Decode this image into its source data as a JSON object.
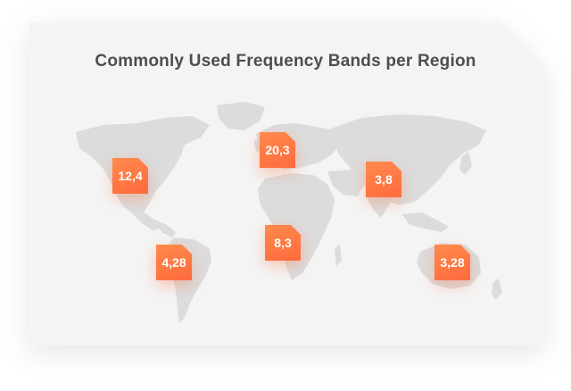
{
  "title": "Commonly Used Frequency Bands per Region",
  "badges": [
    {
      "region": "north-america",
      "label": "12,4"
    },
    {
      "region": "europe",
      "label": "20,3"
    },
    {
      "region": "asia",
      "label": "3,8"
    },
    {
      "region": "south-america",
      "label": "4,28"
    },
    {
      "region": "africa",
      "label": "8,3"
    },
    {
      "region": "australia",
      "label": "3,28"
    }
  ],
  "colors": {
    "badge": "#ff7443",
    "land": "#dcdcdc",
    "card": "#f4f4f4",
    "title": "#4e4e4e"
  }
}
